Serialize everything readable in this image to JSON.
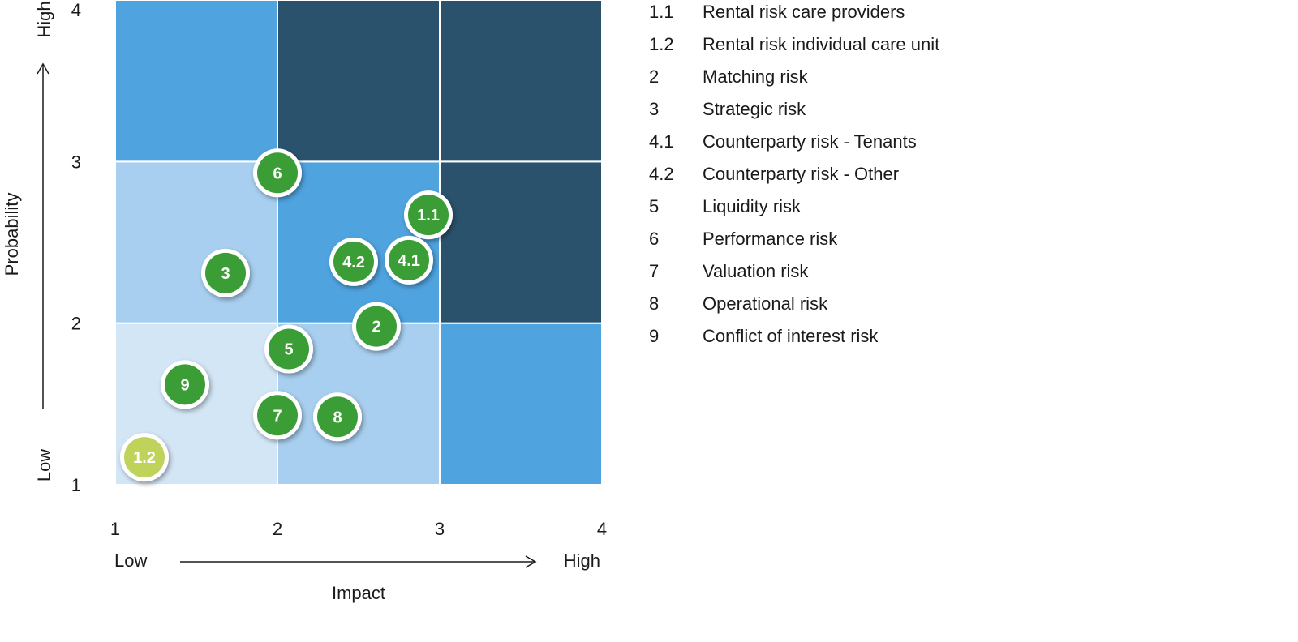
{
  "chart_data": {
    "type": "scatter",
    "title": "",
    "xlabel": "Impact",
    "ylabel": "Probability",
    "xlim": [
      1,
      4
    ],
    "ylim": [
      1,
      4
    ],
    "x_ticks": [
      "1",
      "2",
      "3",
      "4"
    ],
    "y_ticks": [
      "1",
      "2",
      "3",
      "4"
    ],
    "x_low_label": "Low",
    "x_high_label": "High",
    "y_low_label": "Low",
    "y_high_label": "High",
    "zone_colors": {
      "very_light": "#d3e6f6",
      "light": "#a8cfef",
      "medium": "#4fa3df",
      "dark": "#2a526c"
    },
    "grid": [
      [
        "very_light",
        "light",
        "medium"
      ],
      [
        "light",
        "medium",
        "dark"
      ],
      [
        "medium",
        "dark",
        "dark"
      ]
    ],
    "bubble_colors": {
      "default": "#3a9d35",
      "highlight": "#bfd35a"
    },
    "points": [
      {
        "label": "6",
        "x": 2.0,
        "y": 2.93,
        "color": "default"
      },
      {
        "label": "1.1",
        "x": 2.93,
        "y": 2.67,
        "color": "default"
      },
      {
        "label": "3",
        "x": 1.68,
        "y": 2.31,
        "color": "default"
      },
      {
        "label": "4.2",
        "x": 2.47,
        "y": 2.38,
        "color": "default"
      },
      {
        "label": "4.1",
        "x": 2.81,
        "y": 2.39,
        "color": "default"
      },
      {
        "label": "2",
        "x": 2.61,
        "y": 1.98,
        "color": "default"
      },
      {
        "label": "5",
        "x": 2.07,
        "y": 1.84,
        "color": "default"
      },
      {
        "label": "9",
        "x": 1.43,
        "y": 1.62,
        "color": "default"
      },
      {
        "label": "7",
        "x": 2.0,
        "y": 1.43,
        "color": "default"
      },
      {
        "label": "8",
        "x": 2.37,
        "y": 1.42,
        "color": "default"
      },
      {
        "label": "1.2",
        "x": 1.18,
        "y": 1.17,
        "color": "highlight"
      }
    ],
    "legend": [
      {
        "code": "1.1",
        "name": "Rental risk care providers"
      },
      {
        "code": "1.2",
        "name": "Rental risk individual care unit"
      },
      {
        "code": "2",
        "name": "Matching risk"
      },
      {
        "code": "3",
        "name": "Strategic risk"
      },
      {
        "code": "4.1",
        "name": "Counterparty risk - Tenants"
      },
      {
        "code": "4.2",
        "name": "Counterparty risk - Other"
      },
      {
        "code": "5",
        "name": "Liquidity risk"
      },
      {
        "code": "6",
        "name": "Performance risk"
      },
      {
        "code": "7",
        "name": "Valuation risk"
      },
      {
        "code": "8",
        "name": "Operational risk"
      },
      {
        "code": "9",
        "name": "Conflict of interest risk"
      }
    ],
    "legend_placement": "right"
  }
}
